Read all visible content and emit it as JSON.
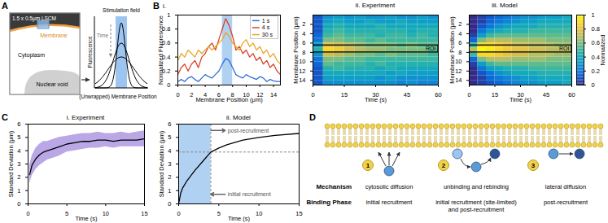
{
  "figure_labels": [
    "A",
    "B",
    "C",
    "D"
  ],
  "panel_A": {
    "scan_box": "1.5 x 0.5μm LSCM",
    "regions": [
      "Membrane",
      "Cytoplasm",
      "Nuclear void"
    ],
    "schematic": {
      "arrow": "Time",
      "band": "Stimulation field",
      "y_label": "Fluorescence",
      "x_label": "(Unwrapped) Membrane Position"
    }
  },
  "chart_data": [
    {
      "title": "i.",
      "type": "line",
      "x": [
        0,
        0.5,
        1,
        1.5,
        2,
        2.5,
        3,
        3.5,
        4,
        4.5,
        5,
        5.5,
        6,
        6.5,
        7,
        7.5,
        8,
        8.5,
        9,
        9.5,
        10,
        10.5,
        11,
        11.5,
        12,
        12.5,
        13,
        13.5,
        14,
        14.5,
        15
      ],
      "series": [
        {
          "name": "1 s",
          "color": "#2f6fd6",
          "values": [
            0.05,
            0.08,
            0.05,
            0.1,
            0.12,
            0.08,
            0.05,
            0.1,
            0.15,
            0.12,
            0.1,
            0.15,
            0.2,
            0.3,
            0.38,
            0.35,
            0.25,
            0.15,
            0.12,
            0.1,
            0.15,
            0.12,
            0.1,
            0.08,
            0.12,
            0.1,
            0.05,
            0.08,
            0.06,
            0.05,
            0.05
          ]
        },
        {
          "name": "4 s",
          "color": "#d6452a",
          "values": [
            0.15,
            0.25,
            0.3,
            0.2,
            0.3,
            0.35,
            0.25,
            0.4,
            0.45,
            0.55,
            0.6,
            0.5,
            0.65,
            0.8,
            0.95,
            0.85,
            0.7,
            0.5,
            0.55,
            0.45,
            0.5,
            0.4,
            0.45,
            0.35,
            0.4,
            0.3,
            0.35,
            0.25,
            0.3,
            0.2,
            0.15
          ]
        },
        {
          "name": "30 s",
          "color": "#e8a82a",
          "values": [
            0.35,
            0.45,
            0.4,
            0.5,
            0.45,
            0.4,
            0.5,
            0.45,
            0.5,
            0.55,
            0.5,
            0.55,
            0.6,
            0.65,
            0.75,
            0.7,
            0.6,
            0.55,
            0.5,
            0.6,
            0.65,
            0.55,
            0.6,
            0.5,
            0.55,
            0.45,
            0.5,
            0.4,
            0.45,
            0.35,
            0.3
          ]
        }
      ],
      "xlabel": "Membrane Position (μm)",
      "ylabel": "Normalized Fluorescence",
      "xlim": [
        0,
        15
      ],
      "xticks": [
        0,
        2,
        4,
        6,
        8,
        10,
        12,
        14
      ],
      "ylim": [
        0,
        1
      ],
      "yticks": [
        0,
        0.2,
        0.4,
        0.6,
        0.8,
        1
      ],
      "legend": "top-right",
      "stimulation_field": [
        6.5,
        8
      ]
    },
    {
      "title": "ii. Experiment",
      "type": "heatmap",
      "x_edges": [
        0,
        5,
        10,
        15,
        20,
        25,
        30,
        35,
        40,
        45,
        50,
        55,
        60
      ],
      "y_edges": [
        0,
        1,
        2,
        3,
        4,
        5,
        6,
        7,
        8,
        9,
        10,
        11,
        12,
        13,
        14,
        15
      ],
      "cells": [
        [
          0.1,
          0.3,
          0.35,
          0.3,
          0.35,
          0.3,
          0.3,
          0.35,
          0.3,
          0.3,
          0.35,
          0.3
        ],
        [
          0.1,
          0.35,
          0.4,
          0.35,
          0.35,
          0.4,
          0.35,
          0.35,
          0.4,
          0.35,
          0.35,
          0.35
        ],
        [
          0.1,
          0.4,
          0.45,
          0.4,
          0.4,
          0.4,
          0.45,
          0.4,
          0.4,
          0.4,
          0.4,
          0.4
        ],
        [
          0.1,
          0.45,
          0.5,
          0.45,
          0.45,
          0.45,
          0.45,
          0.45,
          0.45,
          0.4,
          0.45,
          0.45
        ],
        [
          0.15,
          0.5,
          0.55,
          0.5,
          0.5,
          0.5,
          0.45,
          0.5,
          0.5,
          0.45,
          0.5,
          0.45
        ],
        [
          0.2,
          0.6,
          0.6,
          0.55,
          0.55,
          0.5,
          0.55,
          0.5,
          0.5,
          0.5,
          0.5,
          0.5
        ],
        [
          0.35,
          0.8,
          0.75,
          0.7,
          0.65,
          0.6,
          0.6,
          0.6,
          0.55,
          0.6,
          0.55,
          0.55
        ],
        [
          0.45,
          0.9,
          0.85,
          0.75,
          0.7,
          0.65,
          0.65,
          0.6,
          0.6,
          0.6,
          0.6,
          0.55
        ],
        [
          0.3,
          0.75,
          0.7,
          0.65,
          0.6,
          0.6,
          0.55,
          0.6,
          0.55,
          0.55,
          0.55,
          0.5
        ],
        [
          0.2,
          0.6,
          0.6,
          0.55,
          0.55,
          0.5,
          0.5,
          0.5,
          0.5,
          0.5,
          0.5,
          0.5
        ],
        [
          0.15,
          0.55,
          0.5,
          0.5,
          0.5,
          0.45,
          0.5,
          0.45,
          0.45,
          0.45,
          0.45,
          0.45
        ],
        [
          0.1,
          0.45,
          0.5,
          0.45,
          0.45,
          0.45,
          0.4,
          0.45,
          0.4,
          0.4,
          0.4,
          0.4
        ],
        [
          0.1,
          0.4,
          0.4,
          0.4,
          0.4,
          0.4,
          0.4,
          0.35,
          0.4,
          0.35,
          0.35,
          0.35
        ],
        [
          0.1,
          0.35,
          0.35,
          0.35,
          0.35,
          0.35,
          0.3,
          0.35,
          0.3,
          0.3,
          0.3,
          0.3
        ],
        [
          0.1,
          0.3,
          0.3,
          0.3,
          0.3,
          0.3,
          0.3,
          0.3,
          0.25,
          0.3,
          0.25,
          0.25
        ]
      ],
      "xlabel": "Time (s)",
      "ylabel": "Membrane Position (μm)",
      "xlim": [
        0,
        60
      ],
      "xticks": [
        0,
        15,
        30,
        45,
        60
      ],
      "ylim": [
        0,
        15
      ],
      "yticks": [
        2,
        4,
        6,
        8,
        10,
        12,
        14
      ],
      "roi": {
        "label": "ROI",
        "x": [
          0,
          60
        ],
        "y": [
          6.5,
          8
        ]
      }
    },
    {
      "title": "iii. Model",
      "type": "heatmap",
      "x_edges": [
        0,
        5,
        10,
        15,
        20,
        25,
        30,
        35,
        40,
        45,
        50,
        55,
        60
      ],
      "y_edges": [
        0,
        1,
        2,
        3,
        4,
        5,
        6,
        7,
        8,
        9,
        10,
        11,
        12,
        13,
        14,
        15
      ],
      "cells": [
        [
          0,
          0.05,
          0.1,
          0.15,
          0.2,
          0.25,
          0.3,
          0.3,
          0.35,
          0.35,
          0.35,
          0.4
        ],
        [
          0,
          0.05,
          0.15,
          0.2,
          0.25,
          0.3,
          0.35,
          0.35,
          0.4,
          0.4,
          0.4,
          0.4
        ],
        [
          0,
          0.1,
          0.2,
          0.3,
          0.35,
          0.4,
          0.4,
          0.4,
          0.45,
          0.45,
          0.45,
          0.45
        ],
        [
          0,
          0.2,
          0.35,
          0.4,
          0.45,
          0.45,
          0.45,
          0.5,
          0.5,
          0.5,
          0.5,
          0.5
        ],
        [
          0.05,
          0.35,
          0.5,
          0.55,
          0.55,
          0.55,
          0.55,
          0.55,
          0.55,
          0.55,
          0.55,
          0.55
        ],
        [
          0.15,
          0.6,
          0.7,
          0.7,
          0.7,
          0.65,
          0.65,
          0.65,
          0.65,
          0.6,
          0.6,
          0.6
        ],
        [
          0.5,
          0.9,
          0.9,
          0.85,
          0.8,
          0.75,
          0.75,
          0.7,
          0.7,
          0.7,
          0.65,
          0.65
        ],
        [
          0.7,
          1,
          0.95,
          0.9,
          0.85,
          0.8,
          0.8,
          0.75,
          0.75,
          0.7,
          0.7,
          0.7
        ],
        [
          0.5,
          0.9,
          0.9,
          0.85,
          0.8,
          0.75,
          0.75,
          0.7,
          0.7,
          0.7,
          0.65,
          0.65
        ],
        [
          0.15,
          0.6,
          0.7,
          0.7,
          0.7,
          0.65,
          0.65,
          0.65,
          0.65,
          0.6,
          0.6,
          0.6
        ],
        [
          0.05,
          0.35,
          0.5,
          0.55,
          0.55,
          0.55,
          0.55,
          0.55,
          0.55,
          0.55,
          0.55,
          0.55
        ],
        [
          0,
          0.2,
          0.35,
          0.4,
          0.45,
          0.45,
          0.45,
          0.5,
          0.5,
          0.5,
          0.5,
          0.5
        ],
        [
          0,
          0.1,
          0.2,
          0.3,
          0.35,
          0.4,
          0.4,
          0.4,
          0.45,
          0.45,
          0.45,
          0.45
        ],
        [
          0,
          0.05,
          0.15,
          0.2,
          0.25,
          0.3,
          0.35,
          0.35,
          0.4,
          0.4,
          0.4,
          0.4
        ],
        [
          0,
          0.05,
          0.1,
          0.15,
          0.2,
          0.25,
          0.3,
          0.3,
          0.35,
          0.35,
          0.35,
          0.4
        ]
      ],
      "xlabel": "Time (s)",
      "ylabel": "Membrane Position (μm)",
      "xlim": [
        0,
        60
      ],
      "xticks": [
        0,
        15,
        30,
        45,
        60
      ],
      "ylim": [
        0,
        15
      ],
      "yticks": [
        2,
        4,
        6,
        8,
        10,
        12,
        14
      ],
      "roi": {
        "label": "ROI",
        "x": [
          0,
          60
        ],
        "y": [
          6.5,
          8
        ]
      },
      "color_bar": {
        "label": "Normalized",
        "range": [
          0,
          1
        ],
        "ticks": [
          0,
          0.2,
          0.4,
          0.6,
          0.8,
          1
        ],
        "colors": [
          "#352a87",
          "#0363e1",
          "#1485d4",
          "#06a7c6",
          "#38b99e",
          "#92bf73",
          "#d9ba56",
          "#fcce2e",
          "#f9fb0e"
        ]
      }
    },
    {
      "title": "i. Experiment",
      "type": "line",
      "x": [
        0.2,
        0.5,
        1,
        1.5,
        2,
        2.5,
        3,
        4,
        5,
        6,
        7,
        8,
        9,
        10,
        11,
        12,
        13,
        14,
        15
      ],
      "series": [
        {
          "type": "area",
          "color": "#b9a7e6",
          "lower": [
            1.5,
            2.1,
            2.6,
            2.9,
            3.1,
            3.3,
            3.4,
            3.6,
            3.9,
            4.0,
            4.1,
            4.2,
            4.2,
            4.3,
            4.2,
            4.3,
            4.3,
            4.3,
            4.3
          ],
          "upper": [
            2.9,
            3.6,
            4.2,
            4.5,
            4.7,
            4.7,
            4.8,
            5.0,
            5.1,
            5.2,
            5.3,
            5.3,
            5.4,
            5.3,
            5.3,
            5.4,
            5.3,
            5.4,
            5.5
          ]
        },
        {
          "type": "line",
          "color": "#000000",
          "values": [
            2.2,
            2.9,
            3.4,
            3.7,
            3.9,
            4.0,
            4.1,
            4.3,
            4.5,
            4.6,
            4.7,
            4.7,
            4.8,
            4.8,
            4.7,
            4.8,
            4.8,
            4.8,
            4.9
          ]
        }
      ],
      "xlabel": "Time (s)",
      "ylabel": "Standard Deviation (μm)",
      "xlim": [
        0,
        15
      ],
      "xticks": [
        0,
        5,
        10,
        15
      ],
      "ylim": [
        0,
        6
      ],
      "yticks": [
        0,
        1,
        2,
        3,
        4,
        5,
        6
      ]
    },
    {
      "title": "ii. Model",
      "type": "line",
      "x": [
        0,
        0.25,
        0.5,
        1,
        1.5,
        2,
        3,
        4,
        5,
        6,
        8,
        10,
        12,
        15
      ],
      "series": [
        {
          "type": "line",
          "color": "#000000",
          "values": [
            0,
            0.8,
            1.2,
            1.7,
            2.1,
            2.5,
            3.2,
            3.9,
            4.2,
            4.45,
            4.8,
            5.0,
            5.15,
            5.3
          ]
        }
      ],
      "phases": [
        {
          "label": "initial recruitment",
          "x": [
            0,
            4
          ],
          "color": "#9ec5f0"
        },
        {
          "label": "post-recruitment",
          "x": [
            4,
            15
          ]
        }
      ],
      "threshold": 3.9,
      "xlabel": "Time (s)",
      "ylabel": "Standard Deviation (μm)",
      "xlim": [
        0,
        15
      ],
      "xticks": [
        0,
        5,
        10,
        15
      ],
      "ylim": [
        0,
        6
      ],
      "yticks": [
        0,
        1,
        2,
        3,
        4,
        5,
        6
      ]
    }
  ],
  "panel_D": {
    "steps": [
      1,
      2,
      3
    ],
    "rows": [
      {
        "label": "Mechanism",
        "cells": [
          [
            "cytosolic diffusion"
          ],
          [
            "unbinding and rebinding"
          ],
          [
            "lateral diffusion"
          ]
        ]
      },
      {
        "label": "Binding Phase",
        "cells": [
          [
            "initial recruitment"
          ],
          [
            "initial recruitment (site-limited)",
            "and post-recruitment"
          ],
          [
            "post-recruitment"
          ]
        ]
      }
    ]
  }
}
